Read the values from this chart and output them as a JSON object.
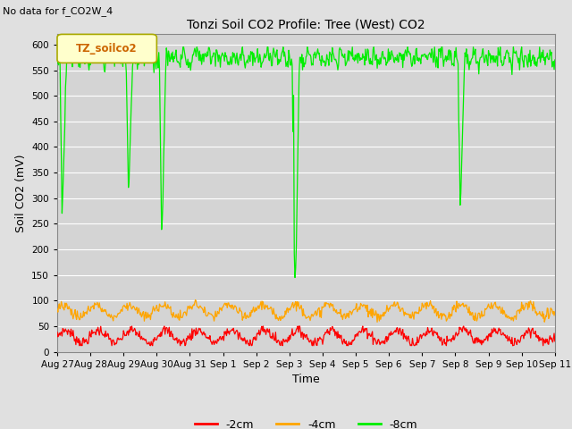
{
  "title": "Tonzi Soil CO2 Profile: Tree (West) CO2",
  "top_left_text": "No data for f_CO2W_4",
  "ylabel": "Soil CO2 (mV)",
  "xlabel": "Time",
  "legend_label": "TZ_soilco2",
  "ylim": [
    0,
    620
  ],
  "yticks": [
    0,
    50,
    100,
    150,
    200,
    250,
    300,
    350,
    400,
    450,
    500,
    550,
    600
  ],
  "xtick_labels": [
    "Aug 27",
    "Aug 28",
    "Aug 29",
    "Aug 30",
    "Aug 31",
    "Sep 1",
    "Sep 2",
    "Sep 3",
    "Sep 4",
    "Sep 5",
    "Sep 6",
    "Sep 7",
    "Sep 8",
    "Sep 9",
    "Sep 10",
    "Sep 11"
  ],
  "color_2cm": "#ff0000",
  "color_4cm": "#ffa500",
  "color_8cm": "#00ee00",
  "background_color": "#e0e0e0",
  "plot_bg_color": "#d4d4d4",
  "legend_series": [
    "-2cm",
    "-4cm",
    "-8cm"
  ],
  "grid_color": "#ffffff",
  "legend_box_facecolor": "#ffffcc",
  "legend_box_edgecolor": "#aaaa00",
  "legend_text_color": "#cc6600"
}
